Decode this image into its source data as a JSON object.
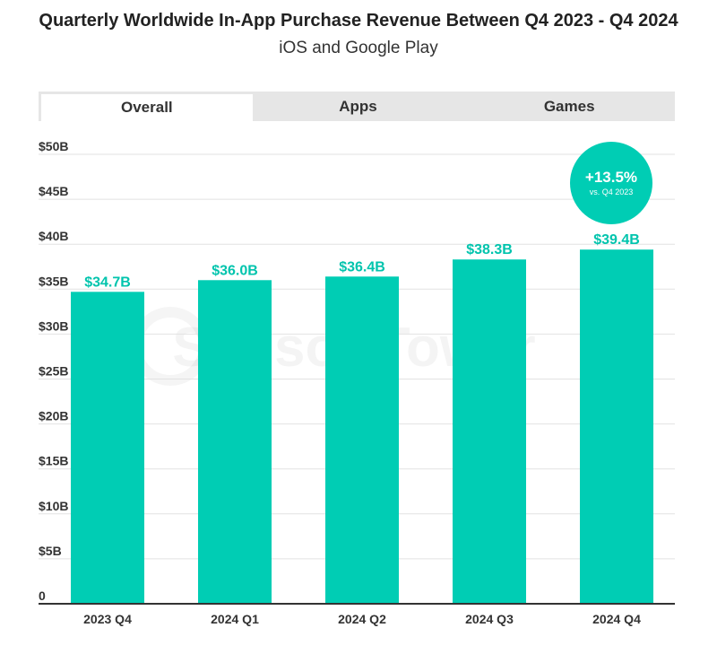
{
  "title": "Quarterly Worldwide In-App Purchase Revenue Between Q4 2023 - Q4 2024",
  "subtitle": "iOS and Google Play",
  "tabs": [
    {
      "label": "Overall",
      "active": true
    },
    {
      "label": "Apps",
      "active": false
    },
    {
      "label": "Games",
      "active": false
    }
  ],
  "badge": {
    "value": "+13.5%",
    "sub": "vs. Q4 2023"
  },
  "watermark": "Sensor Tower",
  "colors": {
    "bar": "#00cdb4",
    "label": "#00c4ad",
    "grid": "#e2e2e2",
    "axis": "#333333"
  },
  "chart_data": {
    "type": "bar",
    "categories": [
      "2023 Q4",
      "2024 Q1",
      "2024 Q2",
      "2024 Q3",
      "2024 Q4"
    ],
    "values": [
      34.7,
      36.0,
      36.4,
      38.3,
      39.4
    ],
    "data_labels": [
      "$34.7B",
      "$36.0B",
      "$36.4B",
      "$38.3B",
      "$39.4B"
    ],
    "y_ticks": [
      0,
      5,
      10,
      15,
      20,
      25,
      30,
      35,
      40,
      45,
      50
    ],
    "y_tick_labels": [
      "0",
      "$5B",
      "$10B",
      "$15B",
      "$20B",
      "$25B",
      "$30B",
      "$35B",
      "$40B",
      "$45B",
      "$50B"
    ],
    "ylim": [
      0,
      50
    ],
    "xlabel": "",
    "ylabel": "",
    "grid": true
  }
}
